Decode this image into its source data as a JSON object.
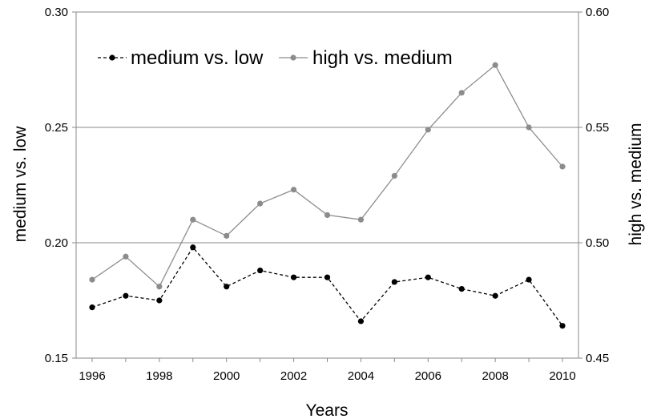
{
  "chart_data": {
    "type": "line",
    "xlabel": "Years",
    "x_ticks": [
      "1996",
      "1998",
      "2000",
      "2002",
      "2004",
      "2006",
      "2008",
      "2010"
    ],
    "x": [
      1996,
      1997,
      1998,
      1999,
      2000,
      2001,
      2002,
      2003,
      2004,
      2005,
      2006,
      2007,
      2008,
      2009,
      2010
    ],
    "y_left": {
      "label": "medium vs. low",
      "ylim": [
        0.15,
        0.3
      ],
      "ticks": [
        "0.15",
        "0.20",
        "0.25",
        "0.30"
      ]
    },
    "y_right": {
      "label": "high vs. medium",
      "ylim": [
        0.45,
        0.6
      ],
      "ticks": [
        "0.45",
        "0.50",
        "0.55",
        "0.60"
      ]
    },
    "grid": "horizontal",
    "legend_placement": "top-left",
    "series": [
      {
        "name": "medium vs. low",
        "axis": "left",
        "style": "dashed",
        "color": "#000000",
        "values": [
          0.172,
          0.177,
          0.175,
          0.198,
          0.181,
          0.188,
          0.185,
          0.185,
          0.166,
          0.183,
          0.185,
          0.18,
          0.177,
          0.184,
          0.164
        ]
      },
      {
        "name": "high vs. medium",
        "axis": "right",
        "style": "solid",
        "color": "#8c8c8c",
        "values": [
          0.484,
          0.494,
          0.481,
          0.51,
          0.503,
          0.517,
          0.523,
          0.512,
          0.51,
          0.529,
          0.549,
          0.565,
          0.577,
          0.55,
          0.533
        ]
      }
    ]
  }
}
